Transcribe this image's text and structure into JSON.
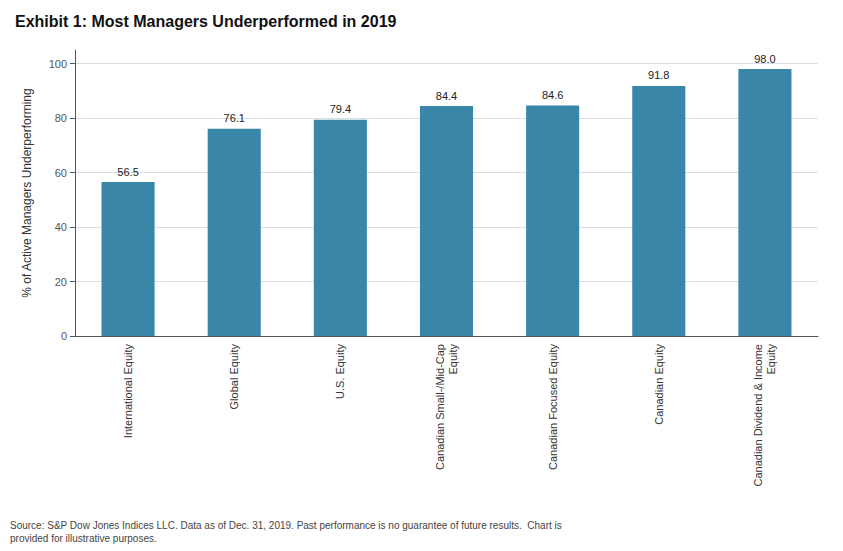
{
  "chart_data": {
    "type": "bar",
    "title": "Exhibit 1: Most Managers Underperformed in 2019",
    "categories": [
      "International Equity",
      "Global Equity",
      "U.S. Equity",
      "Canadian Small-/Mid-Cap\nEquity",
      "Canadian Focused Equity",
      "Canadian Equity",
      "Canadian Dividend & Income\nEquity"
    ],
    "values": [
      56.5,
      76.1,
      79.4,
      84.4,
      84.6,
      91.8,
      98.0
    ],
    "value_labels": [
      "56.5",
      "76.1",
      "79.4",
      "84.4",
      "84.6",
      "91.8",
      "98.0"
    ],
    "data_labels": true,
    "color": "#3a86a8",
    "ylabel": "% of Active Managers Underperforming",
    "ylim": [
      0,
      105
    ],
    "yticks": [
      0,
      20,
      40,
      60,
      80,
      100
    ],
    "grid": true,
    "annotations": [
      "Source: S&P Dow Jones Indices LLC. Data as of Dec. 31, 2019. Past performance is no guarantee of future results.  Chart is\nprovided for illustrative purposes."
    ]
  }
}
